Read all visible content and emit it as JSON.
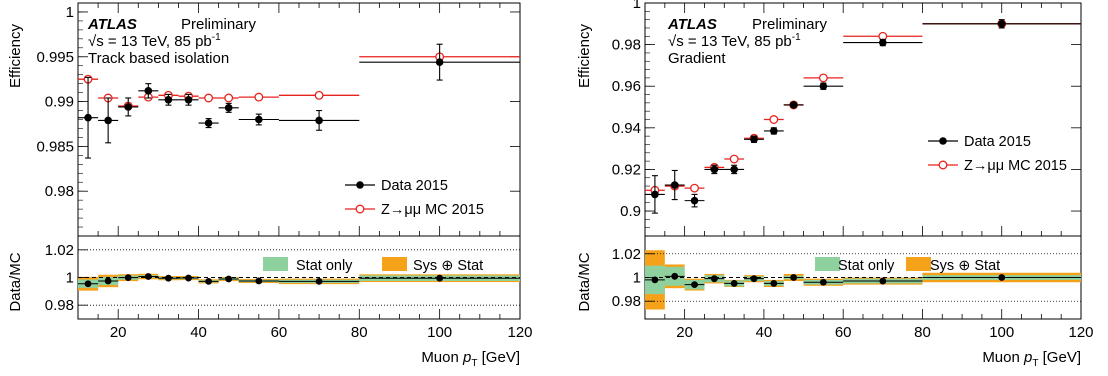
{
  "chart_data": [
    {
      "type": "scatter",
      "experiment": "ATLAS",
      "status": "Preliminary",
      "energy_text": "√s = 13 TeV, 85 pb",
      "energy_sup": "-1",
      "selection": "Track based isolation",
      "xlabel": "Muon",
      "xlabel_var": "p",
      "xlabel_sub": "T",
      "xlabel_unit": "[GeV]",
      "ylabel": "Efficiency",
      "ratio_ylabel": "Data/MC",
      "xlim": [
        10,
        120
      ],
      "ylim": [
        0.975,
        1.001
      ],
      "ratio_ylim": [
        0.97,
        1.03
      ],
      "x_ticks": [
        20,
        40,
        60,
        80,
        100,
        120
      ],
      "y_ticks": [
        0.98,
        0.985,
        0.99,
        0.995,
        1
      ],
      "y_tick_labels": [
        "0.98",
        "0.985",
        "0.99",
        "0.995",
        "1"
      ],
      "ratio_y_ticks": [
        0.98,
        1,
        1.02
      ],
      "ratio_y_tick_labels": [
        "0.98",
        "1",
        "1.02"
      ],
      "legend": {
        "data": "Data 2015",
        "mc": "Z→μμ MC 2015",
        "stat": "Stat only",
        "sys": "Sys ⊕ Stat"
      },
      "colors": {
        "data": "#000000",
        "mc": "#e8231d",
        "stat": "#8fd19e",
        "sys": "#f5a11a"
      },
      "bins": [
        [
          10,
          15
        ],
        [
          15,
          20
        ],
        [
          20,
          25
        ],
        [
          25,
          30
        ],
        [
          30,
          35
        ],
        [
          35,
          40
        ],
        [
          40,
          45
        ],
        [
          45,
          50
        ],
        [
          50,
          60
        ],
        [
          60,
          80
        ],
        [
          80,
          120
        ]
      ],
      "data": {
        "x": [
          12.5,
          17.5,
          22.5,
          27.5,
          32.5,
          37.5,
          42.5,
          47.5,
          55,
          70,
          100
        ],
        "y": [
          0.9882,
          0.9879,
          0.9894,
          0.9912,
          0.9902,
          0.9902,
          0.9876,
          0.9893,
          0.988,
          0.9879,
          0.9944
        ],
        "yerr": [
          0.0045,
          0.0025,
          0.001,
          0.0008,
          0.0006,
          0.0006,
          0.0005,
          0.0005,
          0.0006,
          0.0011,
          0.002
        ]
      },
      "mc": {
        "x": [
          12.5,
          17.5,
          22.5,
          27.5,
          32.5,
          37.5,
          42.5,
          47.5,
          55,
          70,
          100
        ],
        "y": [
          0.9925,
          0.9904,
          0.9895,
          0.9905,
          0.9907,
          0.9906,
          0.9904,
          0.9904,
          0.9905,
          0.9907,
          0.995
        ],
        "yerr": [
          0.0003,
          0.0002,
          0.0002,
          0.0002,
          0.0002,
          0.0002,
          0.0002,
          0.0002,
          0.0002,
          0.0002,
          0.0003
        ]
      },
      "ratio": {
        "y": [
          0.9955,
          0.9975,
          0.9999,
          1.0007,
          0.9995,
          0.9996,
          0.9972,
          0.9989,
          0.9975,
          0.9972,
          0.9995
        ],
        "stat": [
          0.003,
          0.003,
          0.0015,
          0.001,
          0.0008,
          0.0008,
          0.0008,
          0.0008,
          0.0008,
          0.0012,
          0.002
        ],
        "sys": [
          0.005,
          0.0045,
          0.0025,
          0.002,
          0.0015,
          0.0015,
          0.0015,
          0.0015,
          0.0015,
          0.002,
          0.0028
        ]
      }
    },
    {
      "type": "scatter",
      "experiment": "ATLAS",
      "status": "Preliminary",
      "energy_text": "√s = 13 TeV, 85 pb",
      "energy_sup": "-1",
      "selection": "Gradient",
      "xlabel": "Muon",
      "xlabel_var": "p",
      "xlabel_sub": "T",
      "xlabel_unit": "[GeV]",
      "ylabel": "Efficiency",
      "ratio_ylabel": "Data/MC",
      "xlim": [
        10,
        120
      ],
      "ylim": [
        0.888,
        1.0
      ],
      "ratio_ylim": [
        0.965,
        1.035
      ],
      "x_ticks": [
        20,
        40,
        60,
        80,
        100,
        120
      ],
      "y_ticks": [
        0.9,
        0.92,
        0.94,
        0.96,
        0.98,
        1
      ],
      "y_tick_labels": [
        "0.9",
        "0.92",
        "0.94",
        "0.96",
        "0.98",
        "1"
      ],
      "ratio_y_ticks": [
        0.98,
        1,
        1.02
      ],
      "ratio_y_tick_labels": [
        "0.98",
        "1",
        "1.02"
      ],
      "legend": {
        "data": "Data 2015",
        "mc": "Z→μμ MC 2015",
        "stat": "Stat only",
        "sys": "Sys ⊕ Stat"
      },
      "colors": {
        "data": "#000000",
        "mc": "#e8231d",
        "stat": "#8fd19e",
        "sys": "#f5a11a"
      },
      "bins": [
        [
          10,
          15
        ],
        [
          15,
          20
        ],
        [
          20,
          25
        ],
        [
          25,
          30
        ],
        [
          30,
          35
        ],
        [
          35,
          40
        ],
        [
          40,
          45
        ],
        [
          45,
          50
        ],
        [
          50,
          60
        ],
        [
          60,
          80
        ],
        [
          80,
          120
        ]
      ],
      "data": {
        "x": [
          12.5,
          17.5,
          22.5,
          27.5,
          32.5,
          37.5,
          42.5,
          47.5,
          55,
          70,
          100
        ],
        "y": [
          0.908,
          0.9125,
          0.905,
          0.92,
          0.92,
          0.9345,
          0.9385,
          0.951,
          0.96,
          0.981,
          0.99
        ],
        "yerr": [
          0.009,
          0.007,
          0.003,
          0.002,
          0.002,
          0.0015,
          0.0015,
          0.001,
          0.0015,
          0.0015,
          0.002
        ]
      },
      "mc": {
        "x": [
          12.5,
          17.5,
          22.5,
          27.5,
          32.5,
          37.5,
          42.5,
          47.5,
          55,
          70,
          100
        ],
        "y": [
          0.91,
          0.912,
          0.911,
          0.921,
          0.925,
          0.935,
          0.944,
          0.951,
          0.964,
          0.984,
          0.99
        ],
        "yerr": [
          0.0005,
          0.0004,
          0.0004,
          0.0004,
          0.0004,
          0.0004,
          0.0004,
          0.0004,
          0.0004,
          0.0004,
          0.0004
        ]
      },
      "ratio": {
        "y": [
          0.998,
          1.001,
          0.994,
          0.999,
          0.995,
          0.999,
          0.995,
          1.0,
          0.996,
          0.997,
          1.0
        ],
        "stat": [
          0.012,
          0.008,
          0.004,
          0.003,
          0.0025,
          0.002,
          0.002,
          0.0015,
          0.002,
          0.002,
          0.002
        ],
        "sys": [
          0.025,
          0.01,
          0.005,
          0.004,
          0.003,
          0.003,
          0.003,
          0.003,
          0.003,
          0.003,
          0.004
        ]
      }
    }
  ]
}
